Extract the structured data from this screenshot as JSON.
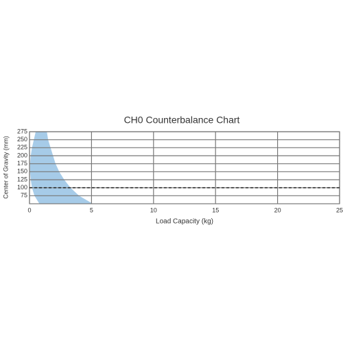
{
  "chart_data": {
    "type": "area",
    "title": "CH0 Counterbalance Chart",
    "x_label": "Load Capacity (kg)",
    "y_label": "Center of Gravity (mm)",
    "y": [
      50,
      75,
      100,
      125,
      150,
      175,
      200,
      225,
      250,
      275
    ],
    "x_right": [
      5.1,
      4.0,
      3.3,
      2.8,
      2.4,
      2.1,
      1.9,
      1.7,
      1.5,
      1.4
    ],
    "x_left": [
      0.8,
      0.4,
      0.2,
      0.1,
      0.05,
      0.05,
      0.1,
      0.2,
      0.35,
      0.5
    ],
    "color": "#a6cbe8",
    "reference_y": 100,
    "xlim": [
      0,
      25
    ],
    "xticks": [
      0,
      5,
      10,
      15,
      20,
      25
    ],
    "ylim": [
      50,
      275
    ],
    "yticks": [
      75,
      100,
      125,
      150,
      175,
      200,
      225,
      250,
      275
    ],
    "grid": true
  }
}
